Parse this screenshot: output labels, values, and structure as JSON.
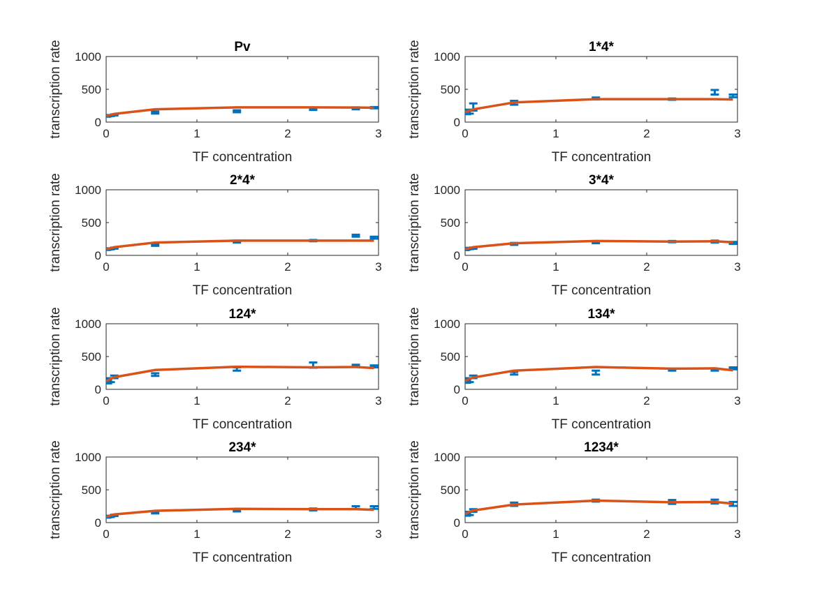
{
  "colors": {
    "data": "#0072BD",
    "fit": "#D95319",
    "axis": "#262626"
  },
  "chart_data": [
    {
      "type": "line",
      "title": "Pv",
      "xlabel": "TF concentration",
      "ylabel": "transcription rate",
      "xlim": [
        0,
        3
      ],
      "ylim": [
        0,
        1000
      ],
      "xticks": [
        "0",
        "1",
        "2",
        "3"
      ],
      "yticks": [
        "0",
        "500",
        "1000"
      ],
      "series": [
        {
          "kind": "errorbar",
          "x": [
            0.005,
            0.02,
            0.05,
            0.09,
            0.54,
            1.44,
            2.28,
            2.75,
            2.95
          ],
          "y": [
            90,
            95,
            100,
            110,
            145,
            165,
            200,
            210,
            220
          ],
          "err": [
            8,
            8,
            8,
            8,
            15,
            15,
            15,
            15,
            10
          ]
        },
        {
          "kind": "fit",
          "x": [
            0.005,
            0.02,
            0.05,
            0.09,
            0.54,
            1.44,
            2.28,
            2.75,
            2.95
          ],
          "y": [
            90,
            100,
            110,
            125,
            195,
            225,
            225,
            222,
            220
          ]
        }
      ]
    },
    {
      "type": "line",
      "title": "1*4*",
      "xlabel": "TF concentration",
      "ylabel": "transcription rate",
      "xlim": [
        0,
        3
      ],
      "ylim": [
        0,
        1000
      ],
      "xticks": [
        "0",
        "1",
        "2",
        "3"
      ],
      "yticks": [
        "0",
        "500",
        "1000"
      ],
      "series": [
        {
          "kind": "errorbar",
          "x": [
            0.005,
            0.02,
            0.05,
            0.09,
            0.54,
            1.44,
            2.28,
            2.75,
            2.95
          ],
          "y": [
            150,
            145,
            160,
            230,
            295,
            360,
            350,
            455,
            400
          ],
          "err": [
            25,
            25,
            30,
            55,
            30,
            15,
            10,
            35,
            20
          ]
        },
        {
          "kind": "fit",
          "x": [
            0.005,
            0.02,
            0.05,
            0.09,
            0.54,
            1.44,
            2.28,
            2.75,
            2.95
          ],
          "y": [
            150,
            160,
            175,
            195,
            300,
            350,
            350,
            350,
            345
          ]
        }
      ]
    },
    {
      "type": "line",
      "title": "2*4*",
      "xlabel": "TF concentration",
      "ylabel": "transcription rate",
      "xlim": [
        0,
        3
      ],
      "ylim": [
        0,
        1000
      ],
      "xticks": [
        "0",
        "1",
        "2",
        "3"
      ],
      "yticks": [
        "0",
        "500",
        "1000"
      ],
      "series": [
        {
          "kind": "errorbar",
          "x": [
            0.005,
            0.02,
            0.05,
            0.09,
            0.54,
            1.44,
            2.28,
            2.75,
            2.95
          ],
          "y": [
            90,
            95,
            100,
            110,
            160,
            210,
            225,
            300,
            270
          ],
          "err": [
            8,
            8,
            8,
            8,
            15,
            15,
            10,
            15,
            15
          ]
        },
        {
          "kind": "fit",
          "x": [
            0.005,
            0.02,
            0.05,
            0.09,
            0.54,
            1.44,
            2.28,
            2.75,
            2.95
          ],
          "y": [
            90,
            100,
            110,
            125,
            195,
            225,
            225,
            225,
            225
          ]
        }
      ]
    },
    {
      "type": "line",
      "title": "3*4*",
      "xlabel": "TF concentration",
      "ylabel": "transcription rate",
      "xlim": [
        0,
        3
      ],
      "ylim": [
        0,
        1000
      ],
      "xticks": [
        "0",
        "1",
        "2",
        "3"
      ],
      "yticks": [
        "0",
        "500",
        "1000"
      ],
      "series": [
        {
          "kind": "errorbar",
          "x": [
            0.005,
            0.02,
            0.05,
            0.09,
            0.54,
            1.44,
            2.28,
            2.75,
            2.95
          ],
          "y": [
            90,
            100,
            105,
            110,
            175,
            200,
            210,
            210,
            190
          ],
          "err": [
            10,
            10,
            10,
            10,
            15,
            15,
            10,
            15,
            15
          ]
        },
        {
          "kind": "fit",
          "x": [
            0.005,
            0.02,
            0.05,
            0.09,
            0.54,
            1.44,
            2.28,
            2.75,
            2.95
          ],
          "y": [
            90,
            100,
            110,
            125,
            185,
            220,
            210,
            215,
            200
          ]
        }
      ]
    },
    {
      "type": "line",
      "title": "124*",
      "xlabel": "TF concentration",
      "ylabel": "transcription rate",
      "xlim": [
        0,
        3
      ],
      "ylim": [
        0,
        1000
      ],
      "xticks": [
        "0",
        "1",
        "2",
        "3"
      ],
      "yticks": [
        "0",
        "500",
        "1000"
      ],
      "series": [
        {
          "kind": "errorbar",
          "x": [
            0.005,
            0.02,
            0.05,
            0.09,
            0.54,
            1.44,
            2.28,
            2.75,
            2.95
          ],
          "y": [
            120,
            110,
            140,
            190,
            225,
            310,
            370,
            360,
            350
          ],
          "err": [
            20,
            20,
            30,
            20,
            20,
            25,
            40,
            15,
            15
          ]
        },
        {
          "kind": "fit",
          "x": [
            0.005,
            0.02,
            0.05,
            0.09,
            0.54,
            1.44,
            2.28,
            2.75,
            2.95
          ],
          "y": [
            120,
            135,
            160,
            185,
            295,
            345,
            335,
            340,
            325
          ]
        }
      ]
    },
    {
      "type": "line",
      "title": "134*",
      "xlabel": "TF concentration",
      "ylabel": "transcription rate",
      "xlim": [
        0,
        3
      ],
      "ylim": [
        0,
        1000
      ],
      "xticks": [
        "0",
        "1",
        "2",
        "3"
      ],
      "yticks": [
        "0",
        "500",
        "1000"
      ],
      "series": [
        {
          "kind": "errorbar",
          "x": [
            0.005,
            0.02,
            0.05,
            0.09,
            0.54,
            1.44,
            2.28,
            2.75,
            2.95
          ],
          "y": [
            125,
            120,
            140,
            190,
            245,
            255,
            300,
            300,
            320
          ],
          "err": [
            25,
            20,
            30,
            20,
            20,
            30,
            15,
            15,
            15
          ]
        },
        {
          "kind": "fit",
          "x": [
            0.005,
            0.02,
            0.05,
            0.09,
            0.54,
            1.44,
            2.28,
            2.75,
            2.95
          ],
          "y": [
            125,
            140,
            160,
            180,
            285,
            340,
            315,
            320,
            290
          ]
        }
      ]
    },
    {
      "type": "line",
      "title": "234*",
      "xlabel": "TF concentration",
      "ylabel": "transcription rate",
      "xlim": [
        0,
        3
      ],
      "ylim": [
        0,
        1000
      ],
      "xticks": [
        "0",
        "1",
        "2",
        "3"
      ],
      "yticks": [
        "0",
        "500",
        "1000"
      ],
      "series": [
        {
          "kind": "errorbar",
          "x": [
            0.005,
            0.02,
            0.05,
            0.09,
            0.54,
            1.44,
            2.28,
            2.75,
            2.95
          ],
          "y": [
            85,
            90,
            95,
            110,
            155,
            185,
            200,
            230,
            230
          ],
          "err": [
            10,
            10,
            10,
            10,
            15,
            15,
            15,
            20,
            20
          ]
        },
        {
          "kind": "fit",
          "x": [
            0.005,
            0.02,
            0.05,
            0.09,
            0.54,
            1.44,
            2.28,
            2.75,
            2.95
          ],
          "y": [
            85,
            95,
            110,
            125,
            180,
            210,
            205,
            205,
            195
          ]
        }
      ]
    },
    {
      "type": "line",
      "title": "1234*",
      "xlabel": "TF concentration",
      "ylabel": "transcription rate",
      "xlim": [
        0,
        3
      ],
      "ylim": [
        0,
        1000
      ],
      "xticks": [
        "0",
        "1",
        "2",
        "3"
      ],
      "yticks": [
        "0",
        "500",
        "1000"
      ],
      "series": [
        {
          "kind": "errorbar",
          "x": [
            0.005,
            0.02,
            0.05,
            0.09,
            0.54,
            1.44,
            2.28,
            2.75,
            2.95
          ],
          "y": [
            130,
            125,
            140,
            185,
            280,
            335,
            315,
            320,
            285
          ],
          "err": [
            20,
            20,
            25,
            20,
            25,
            15,
            30,
            30,
            30
          ]
        },
        {
          "kind": "fit",
          "x": [
            0.005,
            0.02,
            0.05,
            0.09,
            0.54,
            1.44,
            2.28,
            2.75,
            2.95
          ],
          "y": [
            130,
            145,
            165,
            185,
            275,
            335,
            310,
            315,
            290
          ]
        }
      ]
    }
  ]
}
